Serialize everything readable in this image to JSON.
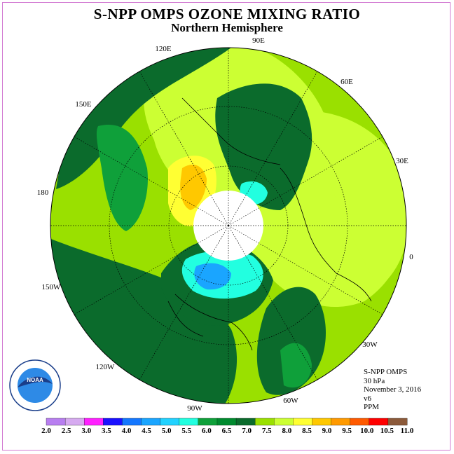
{
  "title": "S-NPP OMPS OZONE MIXING RATIO",
  "subtitle": "Northern Hemisphere",
  "longitude_labels": [
    "90E",
    "60E",
    "30E",
    "0",
    "30W",
    "60W",
    "90W",
    "120W",
    "150W",
    "180",
    "150E",
    "120E"
  ],
  "info": {
    "instrument": "S-NPP OMPS",
    "level": "30 hPa",
    "date": "November 3, 2016",
    "version": "v6",
    "units": "PPM"
  },
  "logo": {
    "name": "NOAA",
    "ring_text": "NATIONAL OCEANIC AND ATMOSPHERIC ADMINISTRATION U.S. DEPARTMENT OF COMMERCE"
  },
  "colors": {
    "land_outline": "#000000",
    "no_data": "#ffffff",
    "frame": "#d27ad2"
  },
  "legend": {
    "ticks": [
      "2.0",
      "2.5",
      "3.0",
      "3.5",
      "4.0",
      "4.5",
      "5.0",
      "5.5",
      "6.0",
      "6.5",
      "7.0",
      "7.5",
      "8.0",
      "8.5",
      "9.0",
      "9.5",
      "10.0",
      "10.5",
      "11.0"
    ],
    "colors": [
      "#b87ef0",
      "#d6aaf0",
      "#ff20ff",
      "#1a10ff",
      "#1477ff",
      "#1aa5ff",
      "#22d2ff",
      "#22ffe0",
      "#0fa03a",
      "#008a2e",
      "#0b6b2c",
      "#9ae000",
      "#ccff33",
      "#ffff33",
      "#ffc800",
      "#ff9a00",
      "#ff5a00",
      "#ff0000",
      "#8c5a3a"
    ]
  }
}
